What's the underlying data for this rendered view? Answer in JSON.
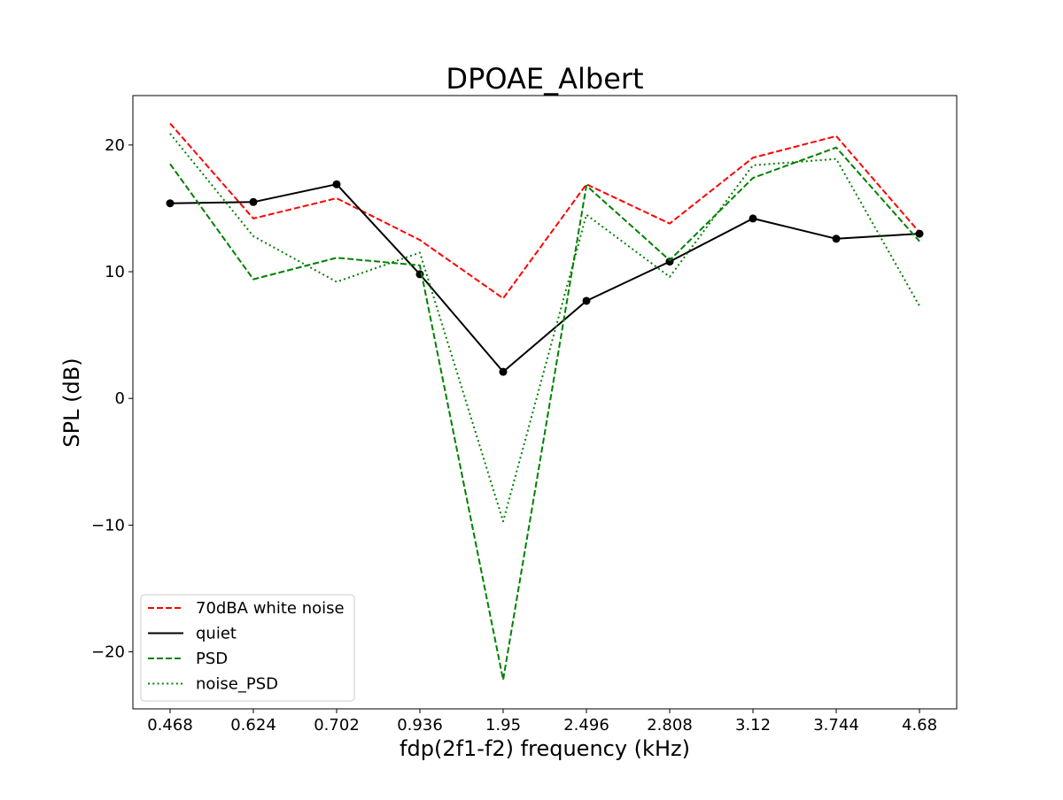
{
  "chart_data": {
    "type": "line",
    "title": "DPOAE_Albert",
    "xlabel": "fdp(2f1-f2) frequency (kHz)",
    "ylabel": "SPL (dB)",
    "categories": [
      "0.468",
      "0.624",
      "0.702",
      "0.936",
      "1.95",
      "2.496",
      "2.808",
      "3.12",
      "3.744",
      "4.68"
    ],
    "ylim": [
      -24.5,
      23.9
    ],
    "yticks": [
      -20,
      -10,
      0,
      10,
      20
    ],
    "ytick_labels": [
      "−20",
      "−10",
      "0",
      "10",
      "20"
    ],
    "grid": false,
    "legend_position": "lower-left",
    "series": [
      {
        "name": "70dBA white noise",
        "color": "#ff0000",
        "style": "dashed",
        "marker": "none",
        "values": [
          21.7,
          14.2,
          15.8,
          12.5,
          7.9,
          16.9,
          13.8,
          19.0,
          20.7,
          13.1
        ]
      },
      {
        "name": "quiet",
        "color": "#000000",
        "style": "solid",
        "marker": "circle",
        "values": [
          15.4,
          15.5,
          16.9,
          9.8,
          2.1,
          7.7,
          10.8,
          14.2,
          12.6,
          13.0
        ]
      },
      {
        "name": "PSD",
        "color": "#008000",
        "style": "dashed",
        "marker": "none",
        "values": [
          18.5,
          9.4,
          11.1,
          10.5,
          -22.2,
          16.8,
          10.9,
          17.4,
          19.8,
          12.4
        ]
      },
      {
        "name": "noise_PSD",
        "color": "#008000",
        "style": "dotted",
        "marker": "none",
        "values": [
          20.9,
          12.8,
          9.2,
          11.5,
          -9.7,
          14.5,
          9.6,
          18.4,
          18.9,
          7.3
        ]
      }
    ]
  }
}
